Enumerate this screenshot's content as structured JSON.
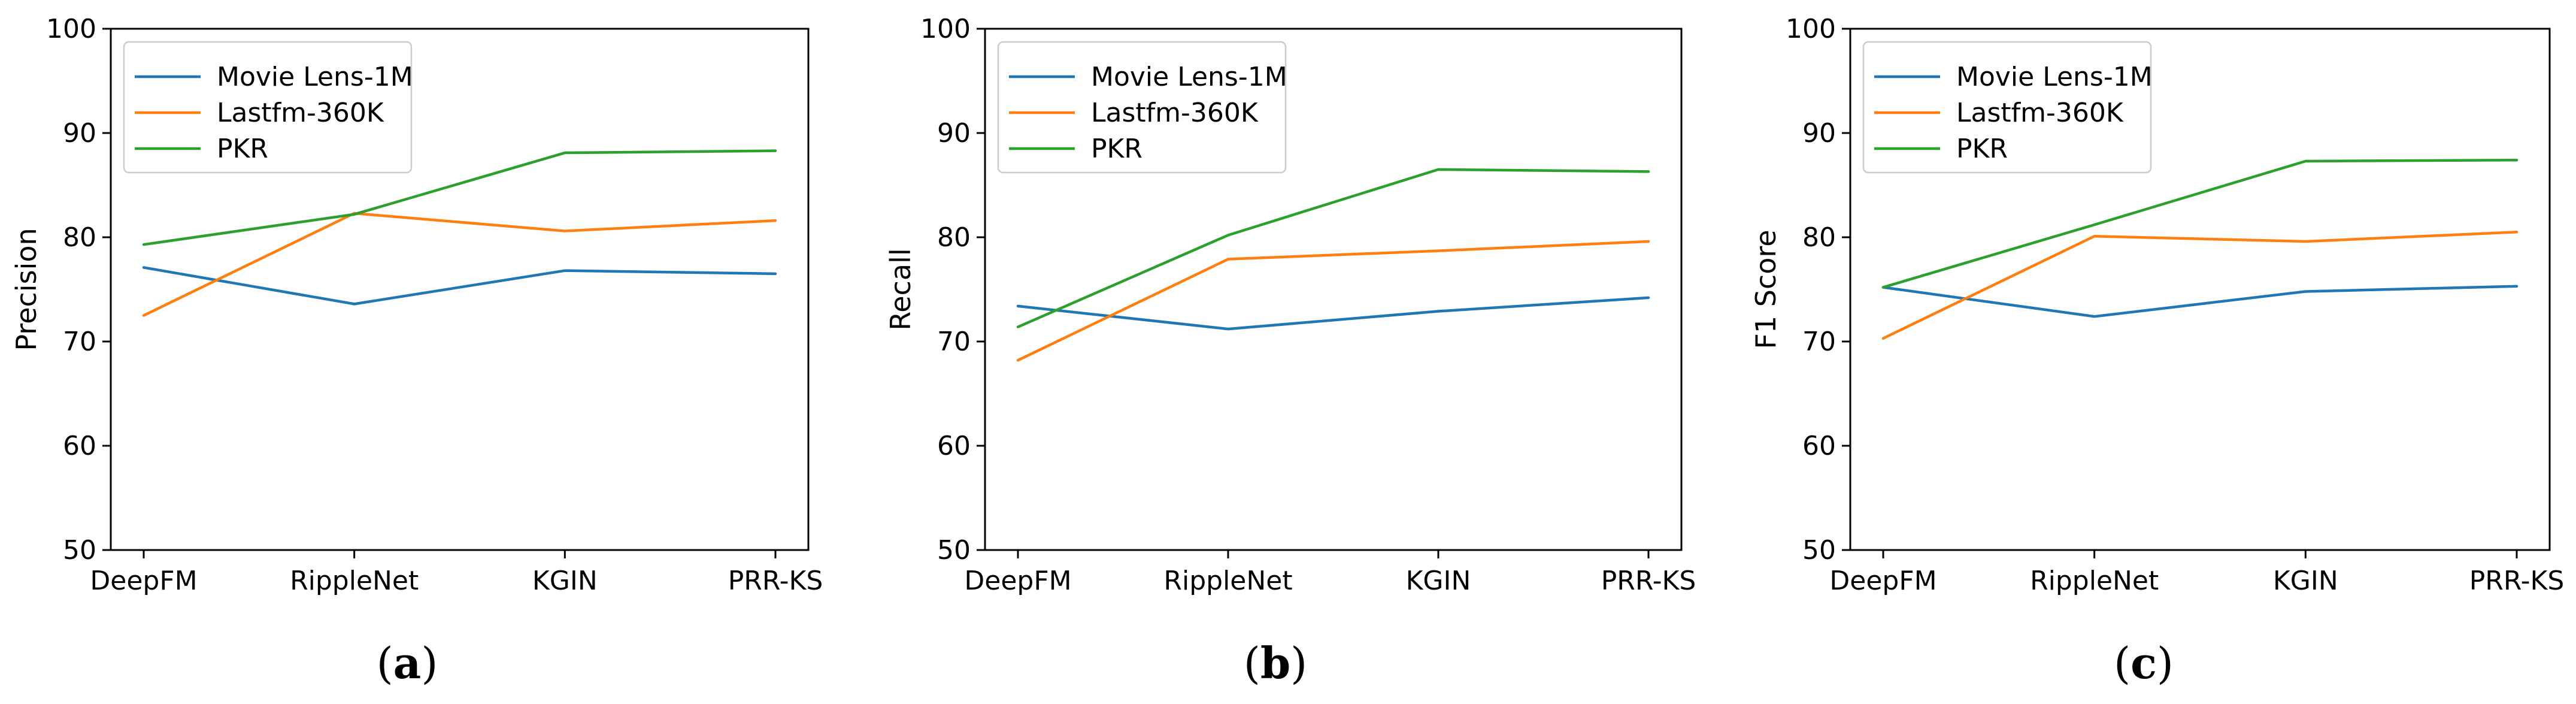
{
  "chart_data": [
    {
      "type": "line",
      "panel_label": "a",
      "categories": [
        "DeepFM",
        "RippleNet",
        "KGIN",
        "PRR-KS"
      ],
      "ylabel": "Precision",
      "ylim": [
        50,
        100
      ],
      "yticks": [
        "50",
        "60",
        "70",
        "80",
        "90",
        "100"
      ],
      "legend_position": "top-left",
      "series": [
        {
          "name": "Movie Lens-1M",
          "color": "#1f77b4",
          "values": [
            77.1,
            73.6,
            76.8,
            76.5
          ]
        },
        {
          "name": "Lastfm-360K",
          "color": "#ff7f0e",
          "values": [
            72.5,
            82.3,
            80.6,
            81.6
          ]
        },
        {
          "name": "PKR",
          "color": "#2ca02c",
          "values": [
            79.3,
            82.2,
            88.1,
            88.3
          ]
        }
      ]
    },
    {
      "type": "line",
      "panel_label": "b",
      "categories": [
        "DeepFM",
        "RippleNet",
        "KGIN",
        "PRR-KS"
      ],
      "ylabel": "Recall",
      "ylim": [
        50,
        100
      ],
      "yticks": [
        "50",
        "60",
        "70",
        "80",
        "90",
        "100"
      ],
      "legend_position": "top-left",
      "series": [
        {
          "name": "Movie Lens-1M",
          "color": "#1f77b4",
          "values": [
            73.4,
            71.2,
            72.9,
            74.2
          ]
        },
        {
          "name": "Lastfm-360K",
          "color": "#ff7f0e",
          "values": [
            68.2,
            77.9,
            78.7,
            79.6
          ]
        },
        {
          "name": "PKR",
          "color": "#2ca02c",
          "values": [
            71.4,
            80.2,
            86.5,
            86.3
          ]
        }
      ]
    },
    {
      "type": "line",
      "panel_label": "c",
      "categories": [
        "DeepFM",
        "RippleNet",
        "KGIN",
        "PRR-KS"
      ],
      "ylabel": "F1 Score",
      "ylim": [
        50,
        100
      ],
      "yticks": [
        "50",
        "60",
        "70",
        "80",
        "90",
        "100"
      ],
      "legend_position": "top-left",
      "series": [
        {
          "name": "Movie Lens-1M",
          "color": "#1f77b4",
          "values": [
            75.2,
            72.4,
            74.8,
            75.3
          ]
        },
        {
          "name": "Lastfm-360K",
          "color": "#ff7f0e",
          "values": [
            70.3,
            80.1,
            79.6,
            80.5
          ]
        },
        {
          "name": "PKR",
          "color": "#2ca02c",
          "values": [
            75.2,
            81.2,
            87.3,
            87.4
          ]
        }
      ]
    }
  ]
}
